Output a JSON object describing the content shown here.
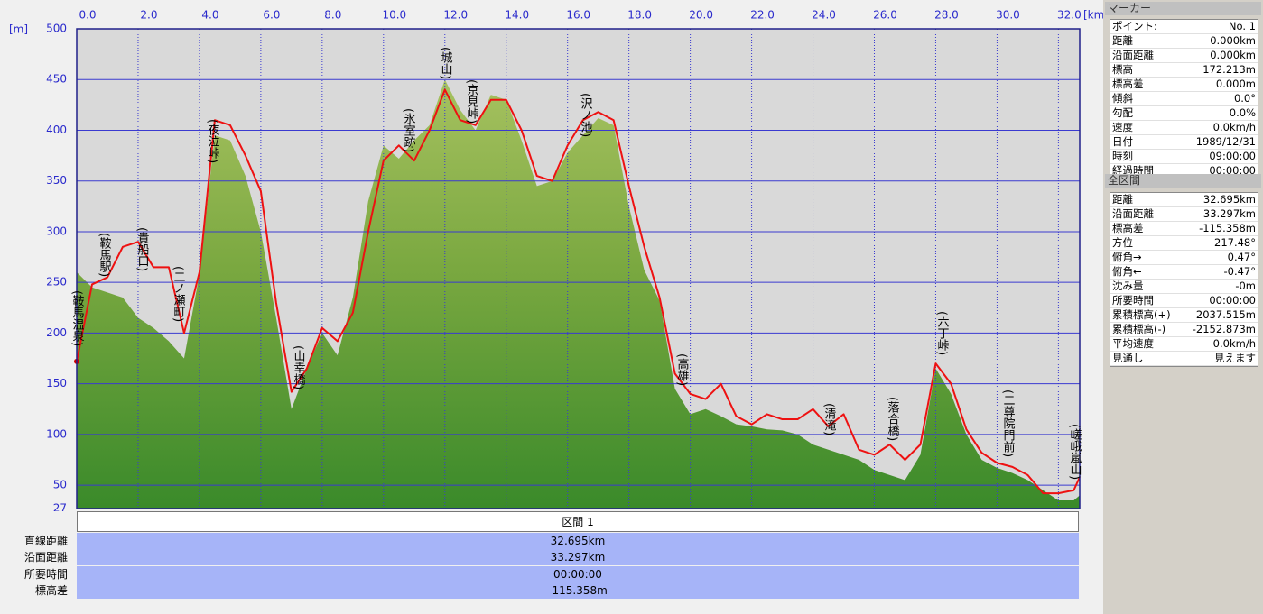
{
  "chart_data": {
    "type": "area",
    "x_unit": "[km]",
    "y_unit": "[m]",
    "x": [
      0,
      0.5,
      1,
      1.5,
      2,
      2.5,
      3,
      3.5,
      4,
      4.5,
      5,
      5.5,
      6,
      6.5,
      7,
      7.5,
      8,
      8.5,
      9,
      9.5,
      10,
      10.5,
      11,
      11.5,
      12,
      12.5,
      13,
      13.5,
      14,
      14.5,
      15,
      15.5,
      16,
      16.5,
      17,
      17.5,
      18,
      18.5,
      19,
      19.5,
      20,
      20.5,
      21,
      21.5,
      22,
      22.5,
      23,
      23.5,
      24,
      24.5,
      25,
      25.5,
      26,
      26.5,
      27,
      27.5,
      28,
      28.5,
      29,
      29.5,
      30,
      30.5,
      31,
      31.5,
      32,
      32.5,
      32.695
    ],
    "series": [
      {
        "kind": "area",
        "color": "#4a9230",
        "values": [
          260,
          245,
          240,
          235,
          215,
          205,
          192,
          175,
          258,
          395,
          390,
          355,
          300,
          215,
          125,
          165,
          200,
          178,
          235,
          330,
          385,
          372,
          390,
          405,
          450,
          420,
          400,
          435,
          430,
          390,
          345,
          350,
          378,
          395,
          412,
          405,
          325,
          262,
          232,
          145,
          120,
          125,
          118,
          110,
          108,
          105,
          104,
          100,
          90,
          85,
          80,
          75,
          65,
          60,
          55,
          80,
          165,
          140,
          100,
          75,
          67,
          62,
          55,
          45,
          35,
          35,
          40
        ]
      },
      {
        "kind": "line",
        "color": "#ee1111",
        "values": [
          172,
          248,
          255,
          285,
          290,
          265,
          265,
          200,
          260,
          410,
          405,
          375,
          340,
          230,
          142,
          165,
          205,
          192,
          220,
          300,
          370,
          385,
          370,
          400,
          440,
          410,
          405,
          430,
          430,
          400,
          355,
          350,
          385,
          410,
          418,
          410,
          345,
          285,
          235,
          160,
          140,
          135,
          150,
          118,
          110,
          120,
          115,
          115,
          125,
          108,
          120,
          85,
          80,
          90,
          75,
          90,
          170,
          150,
          105,
          82,
          72,
          68,
          60,
          42,
          42,
          45,
          58
        ]
      }
    ],
    "xlim": [
      0,
      32.695
    ],
    "xticks": [
      {
        "value": 0,
        "label": "0.0"
      },
      {
        "value": 2,
        "label": "2.0"
      },
      {
        "value": 4,
        "label": "4.0"
      },
      {
        "value": 6,
        "label": "6.0"
      },
      {
        "value": 8,
        "label": "8.0"
      },
      {
        "value": 10,
        "label": "10.0"
      },
      {
        "value": 12,
        "label": "12.0"
      },
      {
        "value": 14,
        "label": "14.0"
      },
      {
        "value": 16,
        "label": "16.0"
      },
      {
        "value": 18,
        "label": "18.0"
      },
      {
        "value": 20,
        "label": "20.0"
      },
      {
        "value": 22,
        "label": "22.0"
      },
      {
        "value": 24,
        "label": "24.0"
      },
      {
        "value": 26,
        "label": "26.0"
      },
      {
        "value": 28,
        "label": "28.0"
      },
      {
        "value": 30,
        "label": "30.0"
      },
      {
        "value": 32,
        "label": "32.0"
      }
    ],
    "ylim": [
      27,
      500
    ],
    "yticks": [
      27,
      50,
      100,
      150,
      200,
      250,
      300,
      350,
      400,
      450,
      500
    ],
    "grid": true,
    "annotations": [
      "(鞍馬温泉)",
      "(鞍馬駅)",
      "(貴船口)",
      "(二ノ瀬町)",
      "(夜泣峠)",
      "(山幸橋)",
      "(氷室跡)",
      "(城山)",
      "(京見峠)",
      "(沢ノ池)",
      "(高雄)",
      "(清滝)",
      "(落合橋)",
      "(六丁峠)",
      "(二尊院門前)",
      "(嵯峨嵐山)"
    ]
  },
  "marker_panel": {
    "title": "マーカー",
    "rows": [
      [
        "ポイント:",
        "No. 1"
      ],
      [
        "距離",
        "0.000km"
      ],
      [
        "沿面距離",
        "0.000km"
      ],
      [
        "標高",
        "172.213m"
      ],
      [
        "標高差",
        "0.000m"
      ],
      [
        "傾斜",
        "0.0°"
      ],
      [
        "勾配",
        "0.0%"
      ],
      [
        "速度",
        "0.0km/h"
      ],
      [
        "日付",
        "1989/12/31"
      ],
      [
        "時刻",
        "09:00:00"
      ],
      [
        "経過時間",
        "00:00:00"
      ]
    ]
  },
  "total_panel": {
    "title": "全区間",
    "rows": [
      [
        "距離",
        "32.695km"
      ],
      [
        "沿面距離",
        "33.297km"
      ],
      [
        "標高差",
        "-115.358m"
      ],
      [
        "方位",
        "217.48°"
      ],
      [
        "俯角→",
        "0.47°"
      ],
      [
        "俯角←",
        "-0.47°"
      ],
      [
        "沈み量",
        "-0m"
      ],
      [
        "所要時間",
        "00:00:00"
      ],
      [
        "累積標高(+)",
        "2037.515m"
      ],
      [
        "累積標高(-)",
        "-2152.873m"
      ],
      [
        "平均速度",
        "0.0km/h"
      ],
      [
        "見通し",
        "見えます"
      ]
    ]
  },
  "section": {
    "title": "区間 1",
    "rows": [
      [
        "直線距離",
        "32.695km"
      ],
      [
        "沿面距離",
        "33.297km"
      ],
      [
        "所要時間",
        "00:00:00"
      ],
      [
        "標高差",
        "-115.358m"
      ]
    ]
  }
}
